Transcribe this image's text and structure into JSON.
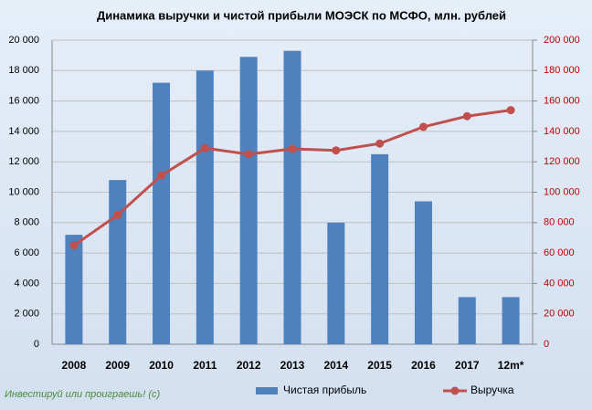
{
  "chart_data": {
    "type": "bar",
    "title": "Динамика выручки и чистой прибыли МОЭСК по МСФО, млн. рублей",
    "annotation": "Инвестируй или проиграешь! (с)",
    "categories": [
      "2008",
      "2009",
      "2010",
      "2011",
      "2012",
      "2013",
      "2014",
      "2015",
      "2016",
      "2017",
      "12m*"
    ],
    "series": [
      {
        "name": "Чистая прибыль",
        "type": "bar",
        "color": "#4f81bd",
        "values": [
          7200,
          10800,
          17200,
          18000,
          18900,
          19300,
          8000,
          12500,
          9400,
          3100,
          3100
        ]
      },
      {
        "name": "Выручка",
        "type": "line",
        "axis": "y2",
        "color": "#c0504d",
        "values": [
          65000,
          85000,
          111000,
          129000,
          125000,
          128500,
          127500,
          132000,
          143000,
          150000,
          154000
        ]
      }
    ],
    "ylim": [
      0,
      20000
    ],
    "yticks": [
      0,
      {
        "value": 2000,
        "label": "2 000"
      },
      {
        "value": 4000,
        "label": "4 000"
      },
      {
        "value": 6000,
        "label": "6 000"
      },
      {
        "value": 8000,
        "label": "8 000"
      },
      {
        "value": 10000,
        "label": "10 000"
      },
      {
        "value": 12000,
        "label": "12 000"
      },
      {
        "value": 14000,
        "label": "14 000"
      },
      {
        "value": 16000,
        "label": "16 000"
      },
      {
        "value": 18000,
        "label": "18 000"
      },
      {
        "value": 20000,
        "label": "20 000"
      }
    ],
    "y2lim": [
      0,
      200000
    ],
    "y2ticks": [
      0,
      {
        "value": 20000,
        "label": "20 000"
      },
      {
        "value": 40000,
        "label": "40 000"
      },
      {
        "value": 60000,
        "label": "60 000"
      },
      {
        "value": 80000,
        "label": "80 000"
      },
      {
        "value": 100000,
        "label": "100 000"
      },
      {
        "value": 120000,
        "label": "120 000"
      },
      {
        "value": 140000,
        "label": "140 000"
      },
      {
        "value": 160000,
        "label": "160 000"
      },
      {
        "value": 180000,
        "label": "180 000"
      },
      {
        "value": 200000,
        "label": "200 000"
      }
    ],
    "grid": true
  }
}
